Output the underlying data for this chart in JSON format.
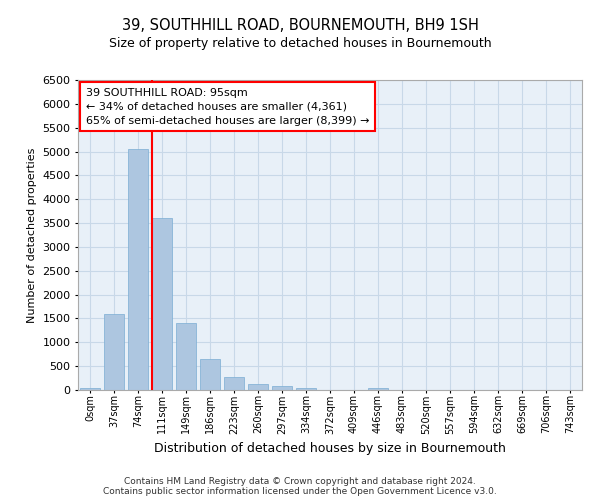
{
  "title_line1": "39, SOUTHHILL ROAD, BOURNEMOUTH, BH9 1SH",
  "title_line2": "Size of property relative to detached houses in Bournemouth",
  "xlabel": "Distribution of detached houses by size in Bournemouth",
  "ylabel": "Number of detached properties",
  "footer_line1": "Contains HM Land Registry data © Crown copyright and database right 2024.",
  "footer_line2": "Contains public sector information licensed under the Open Government Licence v3.0.",
  "categories": [
    "0sqm",
    "37sqm",
    "74sqm",
    "111sqm",
    "149sqm",
    "186sqm",
    "223sqm",
    "260sqm",
    "297sqm",
    "334sqm",
    "372sqm",
    "409sqm",
    "446sqm",
    "483sqm",
    "520sqm",
    "557sqm",
    "594sqm",
    "632sqm",
    "669sqm",
    "706sqm",
    "743sqm"
  ],
  "values": [
    50,
    1600,
    5050,
    3600,
    1400,
    650,
    270,
    130,
    90,
    50,
    10,
    10,
    40,
    0,
    0,
    0,
    0,
    0,
    0,
    0,
    0
  ],
  "bar_color": "#adc6e0",
  "bar_edge_color": "#7aadd4",
  "grid_color": "#c8d8e8",
  "background_color": "#e8f0f8",
  "vline_color": "red",
  "annotation_text_line1": "39 SOUTHHILL ROAD: 95sqm",
  "annotation_text_line2": "← 34% of detached houses are smaller (4,361)",
  "annotation_text_line3": "65% of semi-detached houses are larger (8,399) →",
  "ylim": [
    0,
    6500
  ],
  "yticks": [
    0,
    500,
    1000,
    1500,
    2000,
    2500,
    3000,
    3500,
    4000,
    4500,
    5000,
    5500,
    6000,
    6500
  ],
  "title1_fontsize": 10.5,
  "title2_fontsize": 9,
  "ylabel_fontsize": 8,
  "xlabel_fontsize": 9,
  "tick_fontsize": 8,
  "xtick_fontsize": 7
}
